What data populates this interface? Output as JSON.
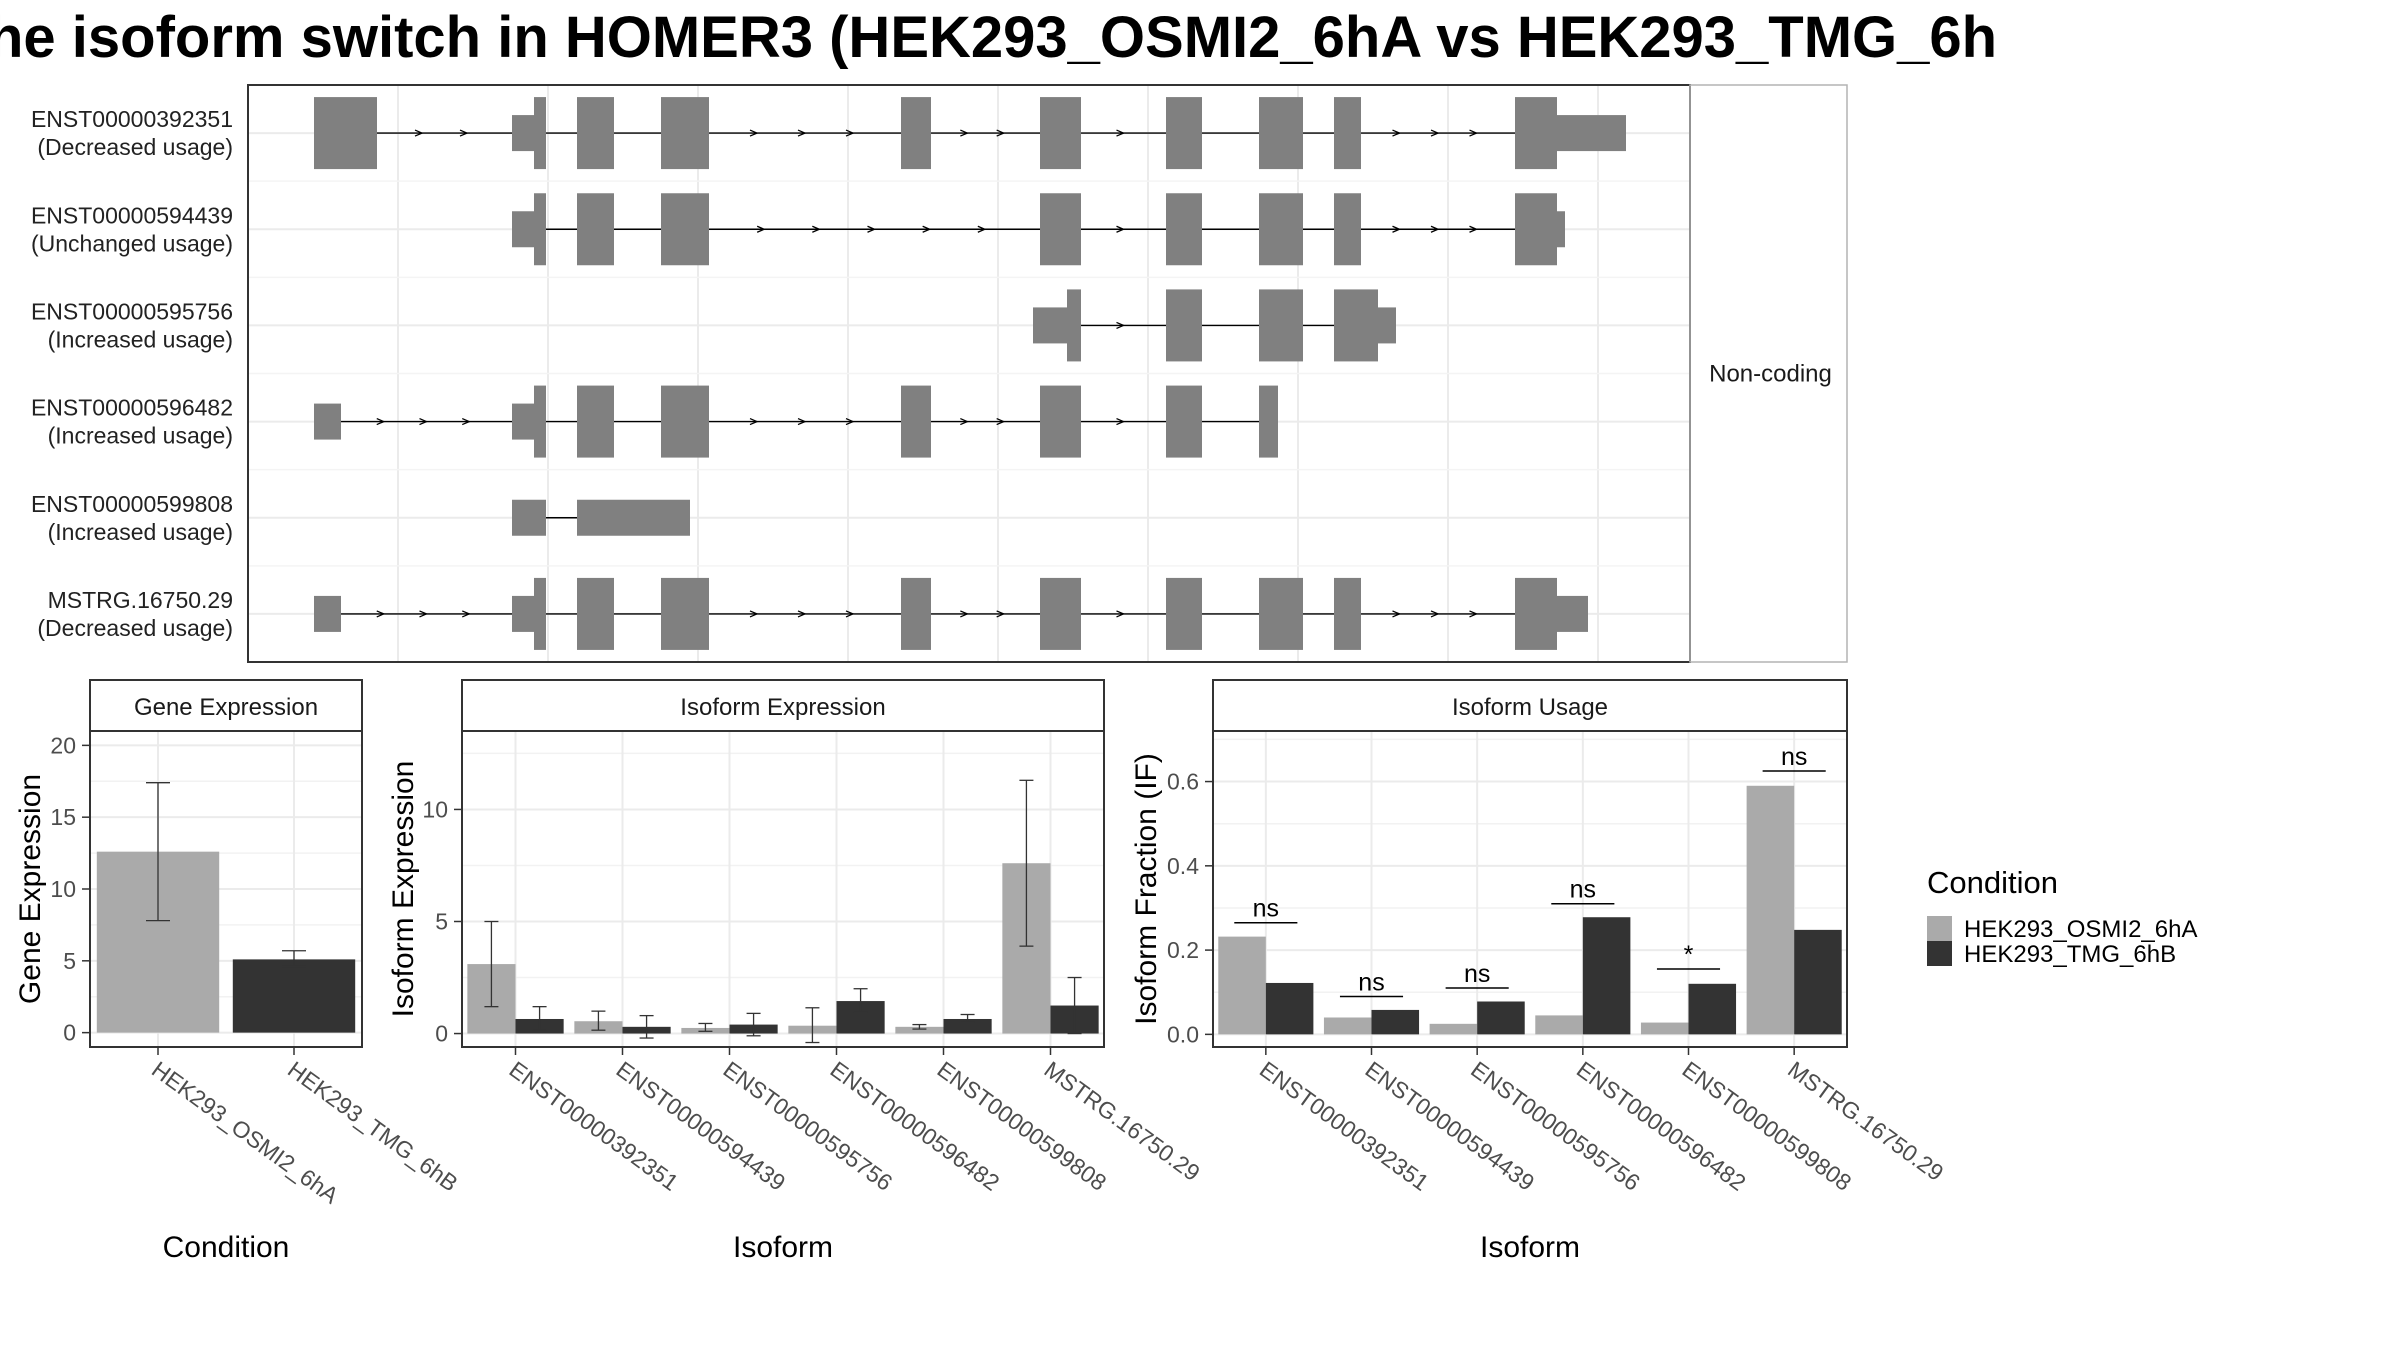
{
  "title": "he isoform switch in HOMER3 (HEK293_OSMI2_6hA vs HEK293_TMG_6h",
  "colors": {
    "condition_a": "#AAAAAA",
    "condition_b": "#333333",
    "transcript": "#808080"
  },
  "chart_data": [
    {
      "type": "gene-structure",
      "facet_label": "Non-coding",
      "transcripts": [
        {
          "id": "ENST00000392351",
          "usage": "(Decreased usage)",
          "exons": [
            [
              0,
              63,
              "L"
            ],
            [
              198,
              220,
              "m"
            ],
            [
              220,
              232,
              "L"
            ],
            [
              263,
              300,
              "L"
            ],
            [
              347,
              395,
              "L"
            ],
            [
              587,
              617,
              "L"
            ],
            [
              726,
              767,
              "L"
            ],
            [
              852,
              888,
              "L"
            ],
            [
              945,
              989,
              "L"
            ],
            [
              1020,
              1047,
              "L"
            ],
            [
              1201,
              1243,
              "L"
            ],
            [
              1243,
              1312,
              "m"
            ]
          ],
          "arrows": [
            [
              63,
              198,
              2
            ],
            [
              395,
              587,
              3
            ],
            [
              617,
              726,
              2
            ],
            [
              767,
              852,
              1
            ],
            [
              1047,
              1201,
              3
            ]
          ]
        },
        {
          "id": "ENST00000594439",
          "usage": "(Unchanged usage)",
          "exons": [
            [
              198,
              220,
              "m"
            ],
            [
              220,
              232,
              "L"
            ],
            [
              263,
              300,
              "L"
            ],
            [
              347,
              395,
              "L"
            ],
            [
              726,
              767,
              "L"
            ],
            [
              852,
              888,
              "L"
            ],
            [
              945,
              989,
              "L"
            ],
            [
              1020,
              1047,
              "L"
            ],
            [
              1201,
              1243,
              "L"
            ],
            [
              1243,
              1251,
              "m"
            ]
          ],
          "arrows": [
            [
              395,
              726,
              5
            ],
            [
              767,
              852,
              1
            ],
            [
              1047,
              1201,
              3
            ]
          ]
        },
        {
          "id": "ENST00000595756",
          "usage": "(Increased usage)",
          "exons": [
            [
              719,
              753,
              "m"
            ],
            [
              753,
              767,
              "L"
            ],
            [
              852,
              888,
              "L"
            ],
            [
              945,
              989,
              "L"
            ],
            [
              1020,
              1064,
              "L"
            ],
            [
              1064,
              1082,
              "m"
            ]
          ],
          "arrows": [
            [
              767,
              852,
              1
            ]
          ]
        },
        {
          "id": "ENST00000596482",
          "usage": "(Increased usage)",
          "exons": [
            [
              0,
              27,
              "m"
            ],
            [
              198,
              220,
              "m"
            ],
            [
              220,
              232,
              "L"
            ],
            [
              263,
              300,
              "L"
            ],
            [
              347,
              395,
              "L"
            ],
            [
              587,
              617,
              "L"
            ],
            [
              726,
              767,
              "L"
            ],
            [
              852,
              888,
              "L"
            ],
            [
              945,
              964,
              "L"
            ]
          ],
          "arrows": [
            [
              27,
              198,
              3
            ],
            [
              395,
              587,
              3
            ],
            [
              617,
              726,
              2
            ],
            [
              767,
              852,
              1
            ]
          ]
        },
        {
          "id": "ENST00000599808",
          "usage": "(Increased usage)",
          "exons": [
            [
              198,
              232,
              "m"
            ],
            [
              263,
              376,
              "m"
            ]
          ],
          "arrows": []
        },
        {
          "id": "MSTRG.16750.29",
          "usage": "(Decreased usage)",
          "exons": [
            [
              0,
              27,
              "m"
            ],
            [
              198,
              220,
              "m"
            ],
            [
              220,
              232,
              "L"
            ],
            [
              263,
              300,
              "L"
            ],
            [
              347,
              395,
              "L"
            ],
            [
              587,
              617,
              "L"
            ],
            [
              726,
              767,
              "L"
            ],
            [
              852,
              888,
              "L"
            ],
            [
              945,
              989,
              "L"
            ],
            [
              1020,
              1047,
              "L"
            ],
            [
              1201,
              1243,
              "L"
            ],
            [
              1243,
              1274,
              "m"
            ]
          ],
          "arrows": [
            [
              27,
              198,
              3
            ],
            [
              395,
              587,
              3
            ],
            [
              617,
              726,
              2
            ],
            [
              767,
              852,
              1
            ],
            [
              1047,
              1201,
              3
            ]
          ]
        }
      ]
    },
    {
      "type": "bar",
      "panel_title": "Gene Expression",
      "xlabel": "Condition",
      "ylabel": "Gene Expression",
      "categories": [
        "HEK293_OSMI2_6hA",
        "HEK293_TMG_6hB"
      ],
      "values": [
        12.6,
        5.1
      ],
      "error": [
        [
          7.8,
          17.4
        ],
        [
          4.6,
          5.7
        ]
      ],
      "ylim": [
        -1.0,
        21.0
      ],
      "yticks": [
        0,
        5,
        10,
        15,
        20
      ]
    },
    {
      "type": "bar",
      "panel_title": "Isoform Expression",
      "xlabel": "Isoform",
      "ylabel": "Isoform Expression",
      "categories": [
        "ENST00000392351",
        "ENST00000594439",
        "ENST00000595756",
        "ENST00000596482",
        "ENST00000599808",
        "MSTRG.16750.29"
      ],
      "series": [
        {
          "name": "HEK293_OSMI2_6hA",
          "values": [
            3.1,
            0.55,
            0.25,
            0.35,
            0.3,
            7.6
          ],
          "error": [
            [
              1.2,
              5.0
            ],
            [
              0.15,
              1.0
            ],
            [
              0.1,
              0.45
            ],
            [
              -0.4,
              1.15
            ],
            [
              0.2,
              0.4
            ],
            [
              3.9,
              11.3
            ]
          ]
        },
        {
          "name": "HEK293_TMG_6hB",
          "values": [
            0.65,
            0.3,
            0.4,
            1.45,
            0.65,
            1.25
          ],
          "error": [
            [
              0.15,
              1.2
            ],
            [
              -0.2,
              0.8
            ],
            [
              -0.1,
              0.9
            ],
            [
              0.95,
              2.0
            ],
            [
              0.5,
              0.85
            ],
            [
              0.0,
              2.5
            ]
          ]
        }
      ],
      "ylim": [
        -0.6,
        13.5
      ],
      "yticks": [
        0,
        5,
        10
      ]
    },
    {
      "type": "bar",
      "panel_title": "Isoform Usage",
      "xlabel": "Isoform",
      "ylabel": "Isoform Fraction (IF)",
      "categories": [
        "ENST00000392351",
        "ENST00000594439",
        "ENST00000595756",
        "ENST00000596482",
        "ENST00000599808",
        "MSTRG.16750.29"
      ],
      "series": [
        {
          "name": "HEK293_OSMI2_6hA",
          "values": [
            0.232,
            0.04,
            0.025,
            0.045,
            0.028,
            0.59
          ]
        },
        {
          "name": "HEK293_TMG_6hB",
          "values": [
            0.122,
            0.058,
            0.078,
            0.278,
            0.12,
            0.248
          ]
        }
      ],
      "significance": [
        {
          "label": "ns",
          "y": 0.265
        },
        {
          "label": "ns",
          "y": 0.09
        },
        {
          "label": "ns",
          "y": 0.11
        },
        {
          "label": "ns",
          "y": 0.31
        },
        {
          "label": "*",
          "y": 0.155
        },
        {
          "label": "ns",
          "y": 0.625
        }
      ],
      "ylim": [
        -0.03,
        0.72
      ],
      "yticks": [
        0.0,
        0.2,
        0.4,
        0.6
      ],
      "ytick_labels": [
        "0.0",
        "0.2",
        "0.4",
        "0.6"
      ]
    }
  ],
  "legend": {
    "title": "Condition",
    "items": [
      "HEK293_OSMI2_6hA",
      "HEK293_TMG_6hB"
    ]
  }
}
